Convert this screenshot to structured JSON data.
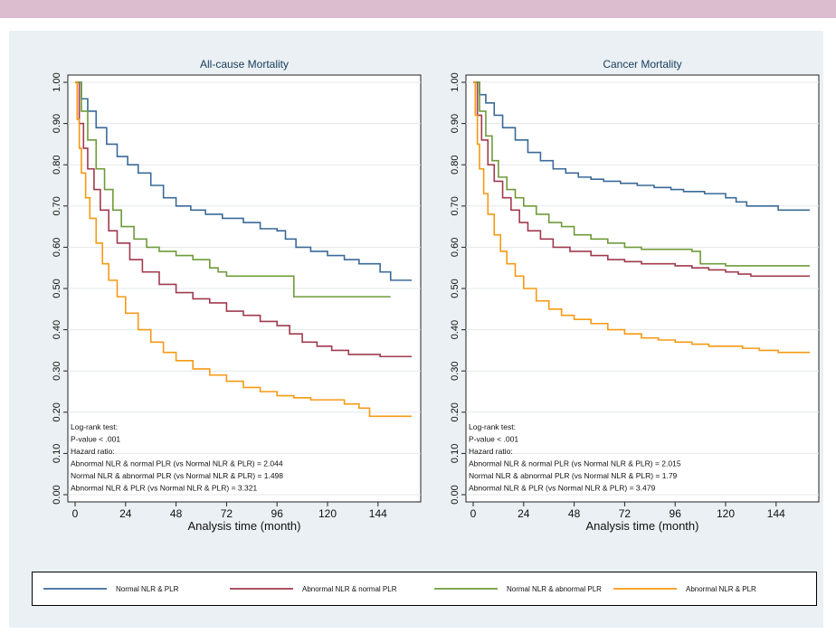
{
  "colors": {
    "normal": "#3a6a98",
    "abn_nlr": "#a03a4e",
    "abn_plr": "#6f9b3a",
    "both": "#f59a15"
  },
  "chart_data": [
    {
      "type": "line",
      "title": "All-cause Mortality",
      "xlabel": "Analysis time (month)",
      "ylabel": "",
      "xlim": [
        0,
        160
      ],
      "ylim": [
        0,
        1
      ],
      "xticks": [
        0,
        24,
        48,
        72,
        96,
        120,
        144
      ],
      "xtick_labels": [
        "0",
        "24",
        "48",
        "72",
        "96",
        "120",
        "144"
      ],
      "yticks": [
        0,
        0.1,
        0.2,
        0.3,
        0.4,
        0.5,
        0.6,
        0.7,
        0.8,
        0.9,
        1.0
      ],
      "ytick_labels": [
        "0.00",
        "0.10",
        "0.20",
        "0.30",
        "0.40",
        "0.50",
        "0.60",
        "0.70",
        "0.80",
        "0.90",
        "1.00"
      ],
      "grid": "horizontal",
      "annotation_lines": [
        "Log-rank test:",
        "P-value < .001",
        "Hazard ratio:",
        "Abnormal NLR & normal PLR (vs Normal NLR & PLR) = 2.044",
        "Normal NLR & abnormal PLR (vs Normal NLR & PLR) = 1.498",
        "Abnormal NLR & PLR (vs Normal NLR & PLR) = 3.321"
      ],
      "series": [
        {
          "name": "Normal NLR & PLR",
          "color_key": "normal",
          "x": [
            0,
            3,
            6,
            10,
            15,
            20,
            25,
            30,
            36,
            42,
            48,
            55,
            62,
            70,
            80,
            88,
            96,
            100,
            105,
            112,
            120,
            128,
            135,
            145,
            150,
            160
          ],
          "y": [
            1.0,
            0.96,
            0.93,
            0.89,
            0.85,
            0.82,
            0.8,
            0.78,
            0.75,
            0.72,
            0.7,
            0.69,
            0.68,
            0.67,
            0.66,
            0.645,
            0.64,
            0.62,
            0.6,
            0.59,
            0.58,
            0.57,
            0.56,
            0.54,
            0.52,
            0.52
          ]
        },
        {
          "name": "Abnormal NLR & normal PLR",
          "color_key": "abn_nlr",
          "x": [
            0,
            2,
            4,
            6,
            9,
            12,
            16,
            20,
            26,
            32,
            40,
            48,
            56,
            64,
            72,
            80,
            88,
            96,
            102,
            108,
            115,
            122,
            130,
            145,
            160
          ],
          "y": [
            1.0,
            0.9,
            0.84,
            0.79,
            0.74,
            0.69,
            0.64,
            0.61,
            0.57,
            0.54,
            0.51,
            0.49,
            0.475,
            0.465,
            0.445,
            0.435,
            0.42,
            0.41,
            0.39,
            0.37,
            0.36,
            0.35,
            0.34,
            0.335,
            0.335
          ]
        },
        {
          "name": "Normal NLR & abnormal PLR",
          "color_key": "abn_plr",
          "x": [
            0,
            3,
            6,
            10,
            14,
            18,
            22,
            28,
            34,
            40,
            48,
            56,
            64,
            68,
            72,
            80,
            90,
            100,
            104,
            110,
            120,
            135,
            150
          ],
          "y": [
            1.0,
            0.93,
            0.86,
            0.79,
            0.74,
            0.69,
            0.65,
            0.62,
            0.6,
            0.59,
            0.58,
            0.57,
            0.55,
            0.54,
            0.53,
            0.53,
            0.53,
            0.53,
            0.48,
            0.48,
            0.48,
            0.48,
            0.48
          ]
        },
        {
          "name": "Abnormal NLR & PLR",
          "color_key": "both",
          "x": [
            0,
            1,
            2,
            3,
            5,
            7,
            10,
            13,
            16,
            20,
            24,
            30,
            36,
            42,
            48,
            56,
            64,
            72,
            80,
            88,
            96,
            104,
            112,
            120,
            128,
            135,
            140,
            150,
            160
          ],
          "y": [
            1.0,
            0.91,
            0.84,
            0.78,
            0.72,
            0.67,
            0.61,
            0.56,
            0.52,
            0.48,
            0.44,
            0.4,
            0.37,
            0.345,
            0.325,
            0.305,
            0.29,
            0.275,
            0.26,
            0.25,
            0.24,
            0.235,
            0.23,
            0.23,
            0.22,
            0.21,
            0.19,
            0.19,
            0.19
          ]
        }
      ]
    },
    {
      "type": "line",
      "title": "Cancer Mortality",
      "xlabel": "Analysis time (month)",
      "ylabel": "",
      "xlim": [
        0,
        160
      ],
      "ylim": [
        0,
        1
      ],
      "xticks": [
        0,
        24,
        48,
        72,
        96,
        120,
        144
      ],
      "xtick_labels": [
        "0",
        "24",
        "48",
        "72",
        "96",
        "120",
        "144"
      ],
      "yticks": [
        0,
        0.1,
        0.2,
        0.3,
        0.4,
        0.5,
        0.6,
        0.7,
        0.8,
        0.9,
        1.0
      ],
      "ytick_labels": [
        "0.00",
        "0.10",
        "0.20",
        "0.30",
        "0.40",
        "0.50",
        "0.60",
        "0.70",
        "0.80",
        "0.90",
        "1.00"
      ],
      "grid": "horizontal",
      "annotation_lines": [
        "Log-rank test:",
        "P-value < .001",
        "Hazard ratio:",
        "Abnormal NLR & normal PLR (vs Normal NLR & PLR) = 2.015",
        "Normal NLR & abnormal PLR (vs Normal NLR & PLR) = 1.79",
        "Abnormal NLR & PLR (vs Normal NLR & PLR) = 3.479"
      ],
      "series": [
        {
          "name": "Normal NLR & PLR",
          "color_key": "normal",
          "x": [
            0,
            3,
            6,
            10,
            14,
            20,
            26,
            32,
            38,
            44,
            50,
            56,
            62,
            70,
            78,
            86,
            94,
            100,
            110,
            120,
            125,
            130,
            138,
            145,
            160
          ],
          "y": [
            1.0,
            0.97,
            0.95,
            0.92,
            0.89,
            0.86,
            0.83,
            0.81,
            0.79,
            0.78,
            0.77,
            0.765,
            0.76,
            0.755,
            0.75,
            0.745,
            0.74,
            0.735,
            0.73,
            0.72,
            0.71,
            0.7,
            0.7,
            0.69,
            0.69
          ]
        },
        {
          "name": "Abnormal NLR & normal PLR",
          "color_key": "abn_nlr",
          "x": [
            0,
            2,
            4,
            7,
            10,
            14,
            18,
            22,
            26,
            32,
            38,
            46,
            56,
            64,
            72,
            80,
            96,
            104,
            112,
            120,
            126,
            132,
            145,
            160
          ],
          "y": [
            1.0,
            0.92,
            0.86,
            0.8,
            0.76,
            0.72,
            0.69,
            0.66,
            0.64,
            0.62,
            0.6,
            0.59,
            0.58,
            0.57,
            0.565,
            0.56,
            0.555,
            0.55,
            0.545,
            0.54,
            0.535,
            0.53,
            0.53,
            0.53
          ]
        },
        {
          "name": "Normal NLR & abnormal PLR",
          "color_key": "abn_plr",
          "x": [
            0,
            3,
            6,
            9,
            12,
            16,
            20,
            24,
            30,
            36,
            42,
            48,
            56,
            64,
            72,
            80,
            96,
            100,
            104,
            108,
            120,
            140,
            150,
            160
          ],
          "y": [
            1.0,
            0.93,
            0.87,
            0.81,
            0.77,
            0.74,
            0.72,
            0.7,
            0.68,
            0.66,
            0.65,
            0.63,
            0.62,
            0.61,
            0.6,
            0.595,
            0.595,
            0.595,
            0.59,
            0.56,
            0.555,
            0.555,
            0.555,
            0.555
          ]
        },
        {
          "name": "Abnormal NLR & PLR",
          "color_key": "both",
          "x": [
            0,
            1,
            2,
            3,
            5,
            7,
            10,
            13,
            16,
            20,
            24,
            30,
            36,
            42,
            48,
            56,
            64,
            72,
            80,
            88,
            96,
            104,
            112,
            120,
            128,
            136,
            145,
            160
          ],
          "y": [
            1.0,
            0.92,
            0.85,
            0.79,
            0.73,
            0.68,
            0.63,
            0.59,
            0.56,
            0.53,
            0.5,
            0.47,
            0.45,
            0.435,
            0.425,
            0.415,
            0.4,
            0.39,
            0.38,
            0.375,
            0.37,
            0.365,
            0.36,
            0.36,
            0.355,
            0.35,
            0.345,
            0.345
          ]
        }
      ]
    }
  ],
  "legend": [
    {
      "label": "Normal NLR & PLR",
      "color_key": "normal"
    },
    {
      "label": "Abnormal NLR & normal PLR",
      "color_key": "abn_nlr"
    },
    {
      "label": "Normal NLR & abnormal PLR",
      "color_key": "abn_plr"
    },
    {
      "label": "Abnormal NLR & PLR",
      "color_key": "both"
    }
  ]
}
